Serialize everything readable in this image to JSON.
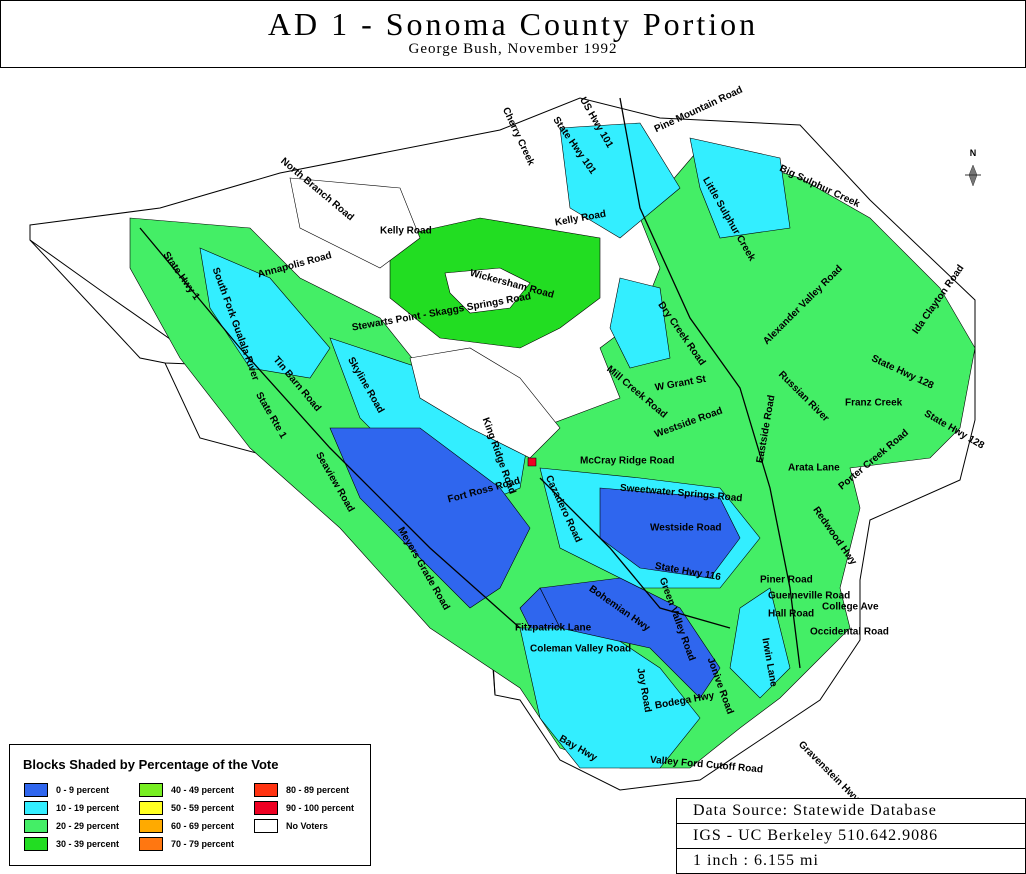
{
  "header": {
    "title": "AD 1 - Sonoma County Portion",
    "subtitle": "George Bush, November 1992"
  },
  "map": {
    "north": "N",
    "roads": [
      "Cherry Creek",
      "US Hwy 101",
      "State Hwy 101",
      "Pine Mountain Road",
      "Big Sulphur Creek",
      "Little Sulphur Creek",
      "North Branch Road",
      "Kelly Road",
      "Kelly Road",
      "Annapolis Road",
      "Wickersham Road",
      "Stewarts Point - Skaggs Springs Road",
      "State Hwy 1",
      "South Fork Gualala River",
      "Tin Barn Road",
      "Skyline Road",
      "State Rte 1",
      "Seaview Road",
      "Fort Ross Road",
      "King Ridge Road",
      "Cazadero Road",
      "McCray Ridge Road",
      "Sweetwater Springs Road",
      "Dry Creek Road",
      "Mill Creek Road",
      "W Grant St",
      "Westside Road",
      "Alexander Valley Road",
      "Ida Clayton Road",
      "State Hwy 128",
      "State Hwy 128",
      "Franz Creek",
      "Russian River",
      "Arata Lane",
      "Porter Creek Road",
      "Eastside Road",
      "Redwood Hwy",
      "Westside Road",
      "Meyers Grade Road",
      "State Hwy 116",
      "Green Valley Road",
      "Bohemian Hwy",
      "Fitzpatrick Lane",
      "Coleman Valley Road",
      "Joy Road",
      "Jonive Road",
      "Bodega Hwy",
      "Bay Hwy",
      "Valley Ford Cutoff Road",
      "Gravenstein Hwy",
      "Piner Road",
      "Guerneville Road",
      "Hall Road",
      "College Ave",
      "Occidental Road",
      "Irwin Lane"
    ]
  },
  "legend": {
    "title": "Blocks Shaded by Percentage of the Vote",
    "items": [
      {
        "label": "0 - 9 percent",
        "color": "#2f66ee"
      },
      {
        "label": "10 - 19 percent",
        "color": "#33eeff"
      },
      {
        "label": "20 - 29 percent",
        "color": "#44ee66"
      },
      {
        "label": "30 - 39 percent",
        "color": "#22dd22"
      },
      {
        "label": "40 - 49 percent",
        "color": "#77ee22"
      },
      {
        "label": "50 - 59 percent",
        "color": "#ffff22"
      },
      {
        "label": "60 - 69 percent",
        "color": "#ffaa00"
      },
      {
        "label": "70 - 79 percent",
        "color": "#ff7711"
      },
      {
        "label": "80 - 89 percent",
        "color": "#ff3311"
      },
      {
        "label": "90 - 100 percent",
        "color": "#ee0022"
      },
      {
        "label": "No Voters",
        "color": "#ffffff"
      }
    ]
  },
  "source": {
    "lines": [
      "Data Source: Statewide Database",
      "IGS - UC Berkeley 510.642.9086",
      "1 inch : 6.155 mi"
    ]
  }
}
